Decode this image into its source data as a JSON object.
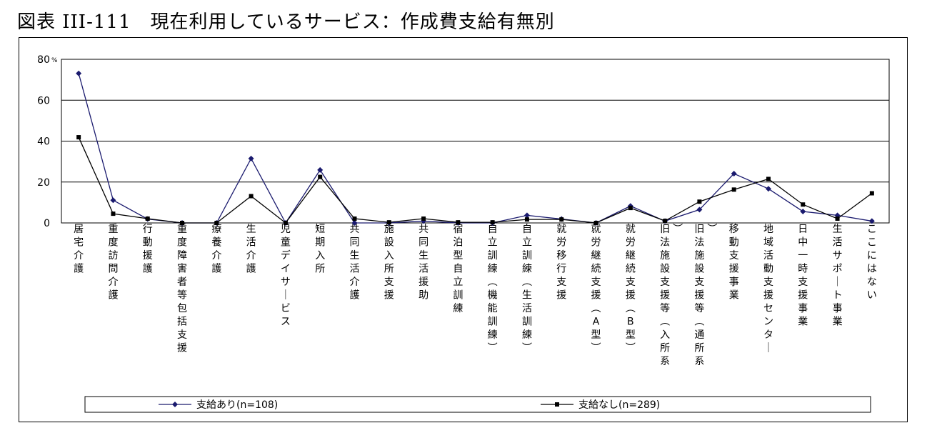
{
  "figure": {
    "title": "図表 III-111　現在利用しているサービス：作成費支給有無別"
  },
  "chart_data": {
    "type": "line",
    "ylim": [
      0,
      80
    ],
    "yticks": [
      0,
      20,
      40,
      60,
      80
    ],
    "y_unit": "%",
    "grid": "horizontal",
    "legend_position": "bottom",
    "categories": [
      "居宅介護",
      "重度訪問介護",
      "行動援護",
      "重度障害者等包括支援",
      "療養介護",
      "生活介護",
      "児童デイサービス",
      "短期入所",
      "共同生活介護",
      "施設入所支援",
      "共同生活援助",
      "宿泊型自立訓練",
      "自立訓練（機能訓練）",
      "自立訓練（生活訓練）",
      "就労移行支援",
      "就労継続支援（A型）",
      "就労継続支援（B型）",
      "旧法施設支援等（入所系）",
      "旧法施設支援等（通所系）",
      "移動支援事業",
      "地域活動支援センター",
      "日中一時支援事業",
      "生活サポート事業",
      "ここにはない"
    ],
    "series": [
      {
        "name": "支給あり(n=108)",
        "marker": "diamond",
        "color": "#1a1a6e",
        "values": [
          73.1,
          11.1,
          1.9,
          0.0,
          0.0,
          31.5,
          0.0,
          25.9,
          0.0,
          0.0,
          0.9,
          0.0,
          0.0,
          3.7,
          1.9,
          0.0,
          8.3,
          0.9,
          6.5,
          24.1,
          16.7,
          5.6,
          3.7,
          0.9
        ]
      },
      {
        "name": "支給なし(n=289)",
        "marker": "square",
        "color": "#000000",
        "values": [
          41.9,
          4.5,
          2.1,
          0.0,
          0.0,
          13.1,
          0.0,
          22.5,
          2.1,
          0.3,
          2.1,
          0.3,
          0.3,
          1.7,
          1.7,
          0.0,
          7.3,
          1.0,
          10.4,
          16.3,
          21.5,
          9.0,
          2.1,
          14.5
        ]
      }
    ]
  }
}
